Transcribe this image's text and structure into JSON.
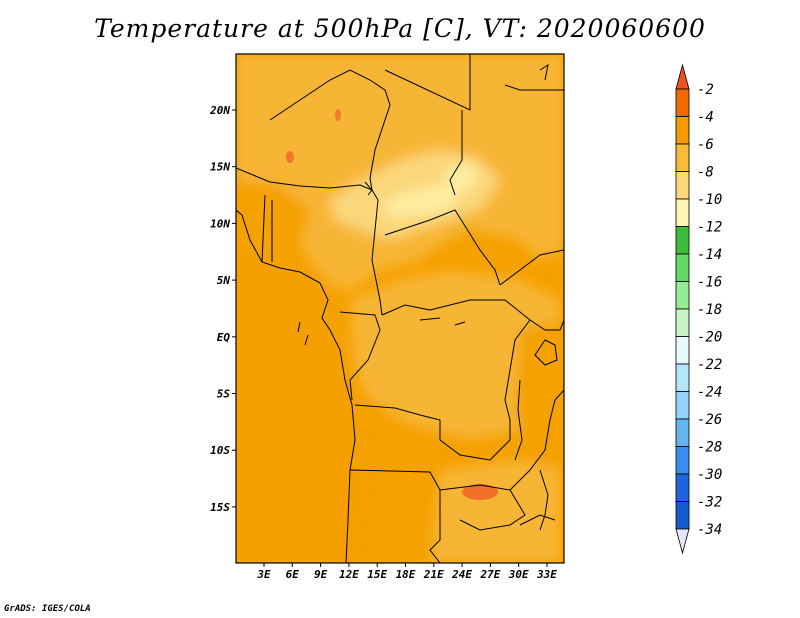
{
  "title": "Temperature at 500hPa [C], VT: 2020060600",
  "credit": "GrADS: IGES/COLA",
  "lat_labels": [
    "20N",
    "15N",
    "10N",
    "5N",
    "EQ",
    "5S",
    "10S",
    "15S"
  ],
  "lon_labels": [
    "3E",
    "6E",
    "9E",
    "12E",
    "15E",
    "18E",
    "21E",
    "24E",
    "27E",
    "30E",
    "33E"
  ],
  "colorbar": {
    "labels": [
      "-2",
      "-4",
      "-6",
      "-8",
      "-10",
      "-12",
      "-14",
      "-16",
      "-18",
      "-20",
      "-22",
      "-24",
      "-26",
      "-28",
      "-30",
      "-32",
      "-34"
    ],
    "colors": [
      "#f0501e",
      "#f06a00",
      "#f59a00",
      "#f9bb3c",
      "#fbd87a",
      "#fef4b4",
      "#3cbe3c",
      "#64d864",
      "#96eb96",
      "#c8f5c8",
      "#e6fafa",
      "#b4e6fa",
      "#96d2fa",
      "#64b4f0",
      "#3c8cf0",
      "#1e64dc",
      "#145ac8",
      "#0a46aa",
      "#0a0a78",
      "#e6e6fa"
    ]
  },
  "field_colors": {
    "warm_orange": "#f5a000",
    "mid_orange": "#f7b535",
    "light_yellow": "#fbd77a",
    "pale_yellow": "#fdeca0",
    "hot_spot": "#f06428"
  }
}
